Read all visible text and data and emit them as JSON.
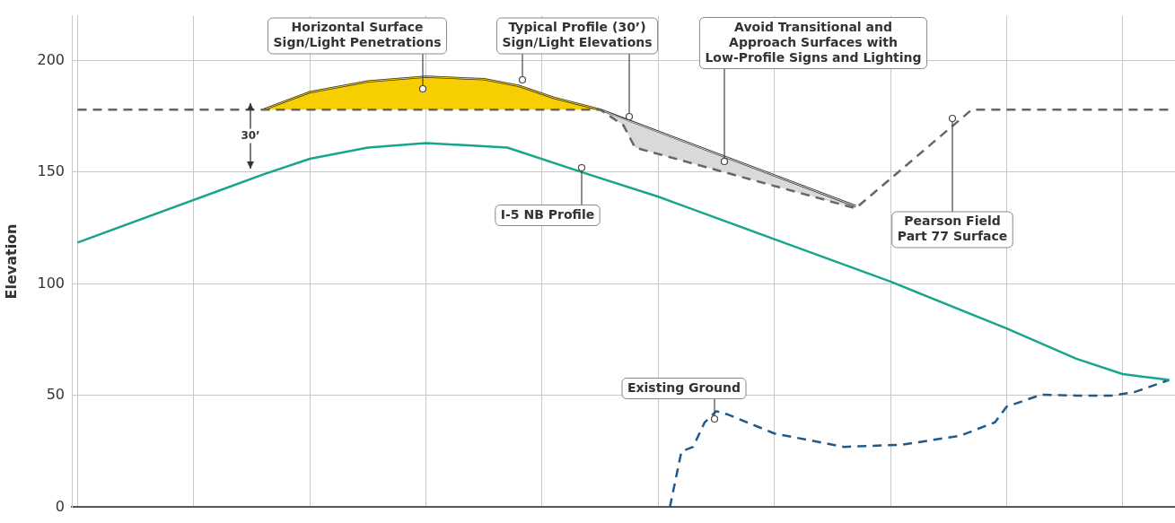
{
  "chart_data": {
    "type": "line",
    "ylabel": "Elevation",
    "categories": [
      null,
      null,
      null,
      null,
      null,
      null,
      null,
      null,
      null,
      null,
      null,
      null,
      null,
      null,
      null,
      null,
      null,
      null,
      null,
      null,
      null,
      null,
      null,
      null,
      null,
      null,
      null,
      null,
      null,
      null,
      null,
      null,
      null,
      null,
      null,
      null,
      null,
      null,
      null,
      null,
      null,
      null,
      null,
      null,
      null,
      null,
      null,
      null,
      null,
      null,
      null,
      null,
      null,
      null,
      null,
      null,
      null,
      null,
      null,
      null,
      null,
      null,
      null,
      null,
      null,
      null,
      null,
      null,
      null,
      null,
      null,
      null,
      null,
      null,
      null,
      null,
      null,
      null,
      null,
      null,
      null,
      null,
      null,
      null,
      null,
      null,
      null,
      null,
      null,
      null,
      null,
      null,
      null,
      null,
      null
    ],
    "ylim": [
      0,
      220
    ],
    "yticks": [
      0,
      50,
      100,
      150,
      200
    ],
    "tick_labels": "y",
    "grid": true,
    "legend": false,
    "marker": "none",
    "series": [
      {
        "color": "#666666",
        "line_style": "dashed",
        "values": [
          178,
          null,
          null,
          null,
          null,
          null,
          null,
          null,
          null,
          null,
          null,
          null,
          null,
          null,
          null,
          null,
          null,
          null,
          null,
          null,
          null,
          null,
          null,
          null,
          null,
          null,
          null,
          null,
          null,
          null,
          null,
          null,
          null,
          null,
          null,
          null,
          null,
          null,
          null,
          null,
          null,
          null,
          null,
          null,
          null,
          178,
          null,
          171,
          161,
          null,
          null,
          null,
          null,
          null,
          null,
          null,
          null,
          null,
          null,
          null,
          null,
          null,
          null,
          null,
          null,
          null,
          null,
          133.8,
          null,
          null,
          null,
          null,
          null,
          null,
          null,
          null,
          null,
          178,
          null,
          null,
          null,
          null,
          null,
          null,
          null,
          null,
          null,
          null,
          null,
          null,
          null,
          null,
          null,
          null,
          178
        ]
      },
      {
        "type": "area",
        "color": "#f7cf00",
        "values": [
          null,
          null,
          null,
          null,
          null,
          null,
          null,
          null,
          null,
          null,
          null,
          null,
          null,
          null,
          null,
          null,
          178,
          null,
          null,
          null,
          185.8,
          null,
          null,
          null,
          null,
          190.6,
          null,
          null,
          null,
          null,
          192.7,
          null,
          null,
          null,
          null,
          191.6,
          null,
          null,
          188.6,
          null,
          null,
          183.3,
          null,
          null,
          null,
          178,
          null,
          null,
          null,
          null,
          null,
          null,
          null,
          null,
          null,
          null,
          null,
          null,
          null,
          null,
          null,
          null,
          null,
          null,
          null,
          null,
          null,
          null,
          null,
          null,
          null,
          null,
          null,
          null,
          null,
          null,
          null,
          null,
          null,
          null,
          null,
          null,
          null,
          null,
          null,
          null,
          null,
          null,
          null,
          null,
          null,
          null,
          null,
          null,
          null
        ]
      },
      {
        "type": "area",
        "color": "#d9d9d9",
        "values": [
          null,
          null,
          null,
          null,
          null,
          null,
          null,
          null,
          null,
          null,
          null,
          null,
          null,
          null,
          null,
          null,
          null,
          null,
          null,
          null,
          null,
          null,
          null,
          null,
          null,
          null,
          null,
          null,
          null,
          null,
          null,
          null,
          null,
          null,
          null,
          null,
          null,
          null,
          null,
          null,
          null,
          null,
          null,
          null,
          null,
          178,
          null,
          173.8,
          172,
          null,
          null,
          null,
          null,
          null,
          null,
          null,
          null,
          null,
          null,
          null,
          null,
          null,
          null,
          null,
          null,
          null,
          null,
          134.8,
          null,
          null,
          null,
          null,
          null,
          null,
          null,
          null,
          null,
          null,
          null,
          null,
          null,
          null,
          null,
          null,
          null,
          null,
          null,
          null,
          null,
          null,
          null,
          null,
          null,
          null,
          null
        ]
      },
      {
        "color": "#333333",
        "line_style": "solid",
        "values": [
          null,
          null,
          null,
          null,
          null,
          null,
          null,
          null,
          null,
          null,
          null,
          null,
          null,
          null,
          null,
          null,
          178,
          null,
          null,
          null,
          185.8,
          null,
          null,
          null,
          null,
          190.6,
          null,
          null,
          null,
          null,
          192.7,
          null,
          null,
          null,
          null,
          191.6,
          null,
          null,
          188.6,
          null,
          null,
          183.3,
          null,
          null,
          null,
          178,
          null,
          null,
          null,
          null,
          null,
          null,
          null,
          null,
          null,
          null,
          null,
          null,
          null,
          null,
          null,
          null,
          null,
          null,
          null,
          null,
          null,
          134.8,
          null,
          null,
          null,
          null,
          null,
          null,
          null,
          null,
          null,
          null,
          null,
          null,
          null,
          null,
          null,
          null,
          null,
          null,
          null,
          null,
          null,
          null,
          null,
          null,
          null,
          null,
          null
        ]
      },
      {
        "color": "#17a68c",
        "line_style": "solid",
        "values": [
          118.5,
          null,
          null,
          null,
          null,
          null,
          null,
          null,
          null,
          null,
          null,
          null,
          null,
          null,
          null,
          null,
          149,
          null,
          null,
          null,
          156,
          null,
          null,
          null,
          null,
          161,
          null,
          null,
          null,
          null,
          163,
          null,
          null,
          null,
          null,
          null,
          null,
          161,
          null,
          null,
          null,
          null,
          null,
          null,
          149,
          null,
          null,
          null,
          null,
          null,
          139,
          null,
          null,
          null,
          null,
          null,
          null,
          null,
          null,
          null,
          120,
          null,
          null,
          null,
          null,
          null,
          null,
          null,
          null,
          null,
          101,
          null,
          null,
          null,
          null,
          null,
          null,
          null,
          null,
          null,
          80,
          null,
          null,
          null,
          null,
          null,
          66.5,
          null,
          null,
          null,
          59.6,
          null,
          null,
          null,
          57
        ]
      },
      {
        "color": "#1f5a8a",
        "line_style": "dashed",
        "values": [
          null,
          null,
          null,
          null,
          null,
          null,
          null,
          null,
          null,
          null,
          null,
          null,
          null,
          null,
          null,
          null,
          null,
          null,
          null,
          null,
          null,
          null,
          null,
          null,
          null,
          null,
          null,
          null,
          null,
          null,
          null,
          null,
          null,
          null,
          null,
          null,
          null,
          null,
          null,
          null,
          null,
          null,
          null,
          null,
          null,
          null,
          null,
          null,
          null,
          null,
          null,
          0,
          25,
          27,
          38,
          43,
          41.5,
          null,
          null,
          null,
          33,
          null,
          null,
          null,
          null,
          null,
          27,
          null,
          null,
          null,
          null,
          28,
          null,
          null,
          null,
          null,
          32,
          null,
          null,
          38,
          45,
          null,
          null,
          50.4,
          null,
          null,
          50,
          null,
          null,
          50,
          null,
          51.5,
          null,
          null,
          57
        ]
      }
    ],
    "annotations": [
      "Horizontal Surface\nSign/Light Penetrations",
      "Typical Profile (30’)\nSign/Light Elevations",
      "Avoid Transitional and\nApproach Surfaces with\nLow-Profile Signs and Lighting",
      "Pearson Field\nPart 77 Surface",
      "I-5 NB Profile",
      "Existing Ground",
      "30’"
    ]
  }
}
